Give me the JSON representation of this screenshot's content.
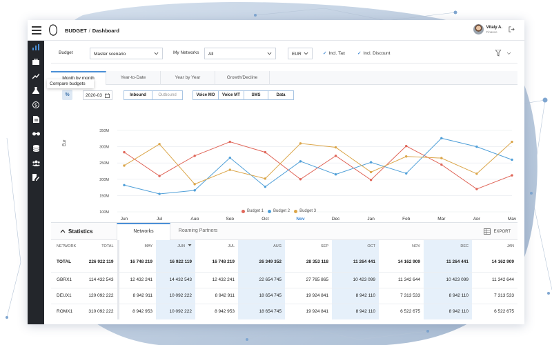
{
  "app": {
    "breadcrumb_root": "BUDGET",
    "breadcrumb_sep": "/",
    "breadcrumb_page": "Dashboard",
    "user_name": "Vitaly A.",
    "user_role": "Finance"
  },
  "sidebar": {
    "icons": [
      "chart-bars-icon",
      "briefcase-icon",
      "trend-icon",
      "flask-icon",
      "dollar-icon",
      "document-icon",
      "glasses-icon",
      "database-icon",
      "users-icon",
      "edit-doc-icon"
    ]
  },
  "filters": {
    "budget_label": "Budget",
    "budget_value": "Master scenario",
    "networks_label": "My Networks",
    "networks_value": "All",
    "currency_value": "EUR",
    "incl_tax": "Incl. Tax",
    "incl_discount": "Incl. Discount"
  },
  "tabs": [
    "Month by month",
    "Year-to-Date",
    "Year by Year",
    "Growth/Decline"
  ],
  "tooltip": "Compare budgets",
  "controls": {
    "percent": "%",
    "date": "2020-03",
    "direction": [
      "Inbound",
      "Outbound"
    ],
    "services": [
      "Voice MO",
      "Voice MT",
      "SMS",
      "Data"
    ]
  },
  "chart_data": {
    "type": "line",
    "categories": [
      "Jun",
      "Jul",
      "Aug",
      "Sep",
      "Oct",
      "Nov",
      "Dec",
      "Jan",
      "Feb",
      "Mar",
      "Apr",
      "May"
    ],
    "highlight_category": "Nov",
    "ylabel": "Eur",
    "yticks": [
      "150M",
      "200M",
      "250M",
      "300M",
      "350M"
    ],
    "ylim": [
      100,
      350
    ],
    "ytick_values": [
      100,
      150,
      200,
      250,
      300,
      350
    ],
    "ytick_labels": [
      "100M",
      "150M",
      "200M",
      "250M",
      "300M",
      "350M"
    ],
    "series": [
      {
        "name": "Budget 1",
        "color": "#e0675a",
        "values": [
          283,
          210,
          272,
          315,
          283,
          200,
          272,
          198,
          302,
          245,
          170,
          212
        ]
      },
      {
        "name": "Budget 2",
        "color": "#4f9fd8",
        "values": [
          182,
          155,
          166,
          266,
          177,
          255,
          215,
          252,
          218,
          326,
          300,
          260
        ]
      },
      {
        "name": "Budget 3",
        "color": "#dba64a",
        "values": [
          242,
          308,
          185,
          229,
          202,
          310,
          298,
          222,
          270,
          265,
          217,
          315
        ]
      }
    ],
    "grid": true,
    "legend": "bottom-center"
  },
  "statistics": {
    "title": "Statistics",
    "tabs": [
      "Networks",
      "Roaming Partners"
    ],
    "export": "EXPORT",
    "frozen_headers": [
      "NETWORK",
      "TOTAL"
    ],
    "month_headers": [
      "MAY",
      "JUN",
      "JUL",
      "AUG",
      "SEP",
      "OCT",
      "NOV",
      "DEC",
      "JAN"
    ],
    "rows": [
      {
        "network": "TOTAL",
        "total": "226 922 119",
        "values": [
          "16 748 219",
          "16 922 119",
          "16 748 219",
          "26 349 352",
          "28 353 118",
          "11 264 441",
          "14 162 909",
          "11 264 441",
          "14 162 909"
        ]
      },
      {
        "network": "GBRX1",
        "total": "114 432 543",
        "values": [
          "12 432 241",
          "14 432 543",
          "12 432 241",
          "22 654 745",
          "27 765 865",
          "10 423 099",
          "11 342 644",
          "10 423 099",
          "11 342 644"
        ]
      },
      {
        "network": "DEUX1",
        "total": "120 092 222",
        "values": [
          "8 942 911",
          "10 092 222",
          "8 942 911",
          "18 654 745",
          "19 924 841",
          "8 942 110",
          "7 313 533",
          "8 942 110",
          "7 313 533"
        ]
      },
      {
        "network": "ROMX1",
        "total": "310 092 222",
        "values": [
          "8 942 953",
          "10 092 222",
          "8 942 953",
          "18 654 745",
          "19 924 841",
          "8 942 110",
          "6 522 675",
          "8 942 110",
          "6 522 675"
        ]
      }
    ]
  }
}
